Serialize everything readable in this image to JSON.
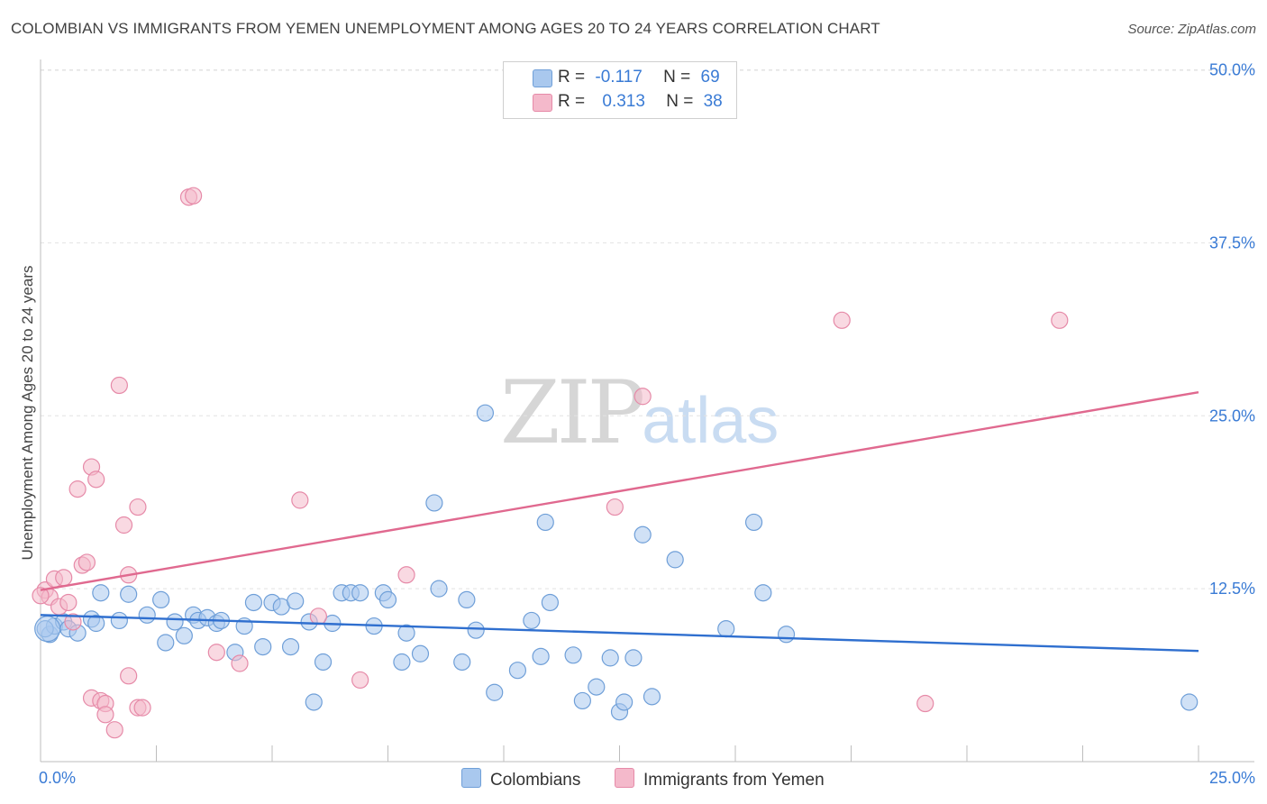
{
  "title": "COLOMBIAN VS IMMIGRANTS FROM YEMEN UNEMPLOYMENT AMONG AGES 20 TO 24 YEARS CORRELATION CHART",
  "source": "Source: ZipAtlas.com",
  "watermark": {
    "zip": "ZIP",
    "atlas": "atlas"
  },
  "legend_top": {
    "rows": [
      {
        "r_label": "R =",
        "r_value": "-0.117",
        "n_label": "N =",
        "n_value": "69"
      },
      {
        "r_label": "R =",
        "r_value": "0.313",
        "n_label": "N =",
        "n_value": "38"
      }
    ]
  },
  "bottom_legend": {
    "series1": "Colombians",
    "series2": "Immigrants from Yemen"
  },
  "colors": {
    "blue_fill": "#a9c8ee",
    "blue_stroke": "#6f9fd8",
    "blue_line": "#2f6fcf",
    "pink_fill": "#f4b9cb",
    "pink_stroke": "#e68aa8",
    "pink_line": "#e0698f",
    "tick_label": "#3a7bd5",
    "grid": "#e2e2e2"
  },
  "chart_data": {
    "type": "scatter",
    "title": "COLOMBIAN VS IMMIGRANTS FROM YEMEN UNEMPLOYMENT AMONG AGES 20 TO 24 YEARS CORRELATION CHART",
    "xlabel": "",
    "ylabel": "Unemployment Among Ages 20 to 24 years",
    "xlim": [
      0,
      25
    ],
    "ylim": [
      0,
      50
    ],
    "x_tick_labels": [
      "0.0%",
      "25.0%"
    ],
    "y_ticks": [
      12.5,
      25.0,
      37.5,
      50.0
    ],
    "y_tick_labels": [
      "12.5%",
      "25.0%",
      "37.5%",
      "50.0%"
    ],
    "grid": true,
    "legend_position": "bottom-center",
    "series": [
      {
        "name": "Colombians",
        "color": "#a9c8ee",
        "trend": [
          [
            0,
            10.6
          ],
          [
            25,
            8.0
          ]
        ],
        "points": [
          [
            0.2,
            9.2
          ],
          [
            0.3,
            9.8
          ],
          [
            0.5,
            10.1
          ],
          [
            0.6,
            9.6
          ],
          [
            0.8,
            9.3
          ],
          [
            1.1,
            10.3
          ],
          [
            1.2,
            10.0
          ],
          [
            1.3,
            12.2
          ],
          [
            1.7,
            10.2
          ],
          [
            1.9,
            12.1
          ],
          [
            2.3,
            10.6
          ],
          [
            2.6,
            11.7
          ],
          [
            2.7,
            8.6
          ],
          [
            2.9,
            10.1
          ],
          [
            3.1,
            9.1
          ],
          [
            3.3,
            10.6
          ],
          [
            3.4,
            10.2
          ],
          [
            3.6,
            10.4
          ],
          [
            3.8,
            10.0
          ],
          [
            3.9,
            10.2
          ],
          [
            4.2,
            7.9
          ],
          [
            4.4,
            9.8
          ],
          [
            4.6,
            11.5
          ],
          [
            4.8,
            8.3
          ],
          [
            5.0,
            11.5
          ],
          [
            5.2,
            11.2
          ],
          [
            5.4,
            8.3
          ],
          [
            5.5,
            11.6
          ],
          [
            5.8,
            10.1
          ],
          [
            5.9,
            4.3
          ],
          [
            6.1,
            7.2
          ],
          [
            6.3,
            10.0
          ],
          [
            6.5,
            12.2
          ],
          [
            6.7,
            12.2
          ],
          [
            6.9,
            12.2
          ],
          [
            7.2,
            9.8
          ],
          [
            7.4,
            12.2
          ],
          [
            7.5,
            11.7
          ],
          [
            7.8,
            7.2
          ],
          [
            7.9,
            9.3
          ],
          [
            8.2,
            7.8
          ],
          [
            8.5,
            18.7
          ],
          [
            8.6,
            12.5
          ],
          [
            9.1,
            7.2
          ],
          [
            9.2,
            11.7
          ],
          [
            9.4,
            9.5
          ],
          [
            9.6,
            25.2
          ],
          [
            9.8,
            5.0
          ],
          [
            10.3,
            6.6
          ],
          [
            10.6,
            10.2
          ],
          [
            10.8,
            7.6
          ],
          [
            10.9,
            17.3
          ],
          [
            11.0,
            11.5
          ],
          [
            11.5,
            7.7
          ],
          [
            11.7,
            4.4
          ],
          [
            12.0,
            5.4
          ],
          [
            12.3,
            7.5
          ],
          [
            12.5,
            3.6
          ],
          [
            12.6,
            4.3
          ],
          [
            12.8,
            7.5
          ],
          [
            13.0,
            16.4
          ],
          [
            13.2,
            4.7
          ],
          [
            13.7,
            14.6
          ],
          [
            14.8,
            9.6
          ],
          [
            15.4,
            17.3
          ],
          [
            15.6,
            12.2
          ],
          [
            16.1,
            9.2
          ],
          [
            24.8,
            4.3
          ],
          [
            0.1,
            9.6
          ]
        ]
      },
      {
        "name": "Immigrants from Yemen",
        "color": "#f4b9cb",
        "trend": [
          [
            0,
            12.4
          ],
          [
            25,
            26.7
          ]
        ],
        "points": [
          [
            0.1,
            12.4
          ],
          [
            0.2,
            11.9
          ],
          [
            0.3,
            13.2
          ],
          [
            0.4,
            11.2
          ],
          [
            0.5,
            13.3
          ],
          [
            0.6,
            11.5
          ],
          [
            0.7,
            10.1
          ],
          [
            0.8,
            19.7
          ],
          [
            0.9,
            14.2
          ],
          [
            1.0,
            14.4
          ],
          [
            1.1,
            21.3
          ],
          [
            1.2,
            20.4
          ],
          [
            1.1,
            4.6
          ],
          [
            1.3,
            4.4
          ],
          [
            1.4,
            4.2
          ],
          [
            1.4,
            3.4
          ],
          [
            1.6,
            2.3
          ],
          [
            1.7,
            27.2
          ],
          [
            1.8,
            17.1
          ],
          [
            1.9,
            6.2
          ],
          [
            1.9,
            13.5
          ],
          [
            2.1,
            3.9
          ],
          [
            2.1,
            18.4
          ],
          [
            2.2,
            3.9
          ],
          [
            3.2,
            40.8
          ],
          [
            3.3,
            40.9
          ],
          [
            3.8,
            7.9
          ],
          [
            4.3,
            7.1
          ],
          [
            5.6,
            18.9
          ],
          [
            6.0,
            10.5
          ],
          [
            6.9,
            5.9
          ],
          [
            7.9,
            13.5
          ],
          [
            12.4,
            18.4
          ],
          [
            13.0,
            26.4
          ],
          [
            17.3,
            31.9
          ],
          [
            19.1,
            4.2
          ],
          [
            22.0,
            31.9
          ],
          [
            0.0,
            12.0
          ]
        ]
      }
    ]
  }
}
